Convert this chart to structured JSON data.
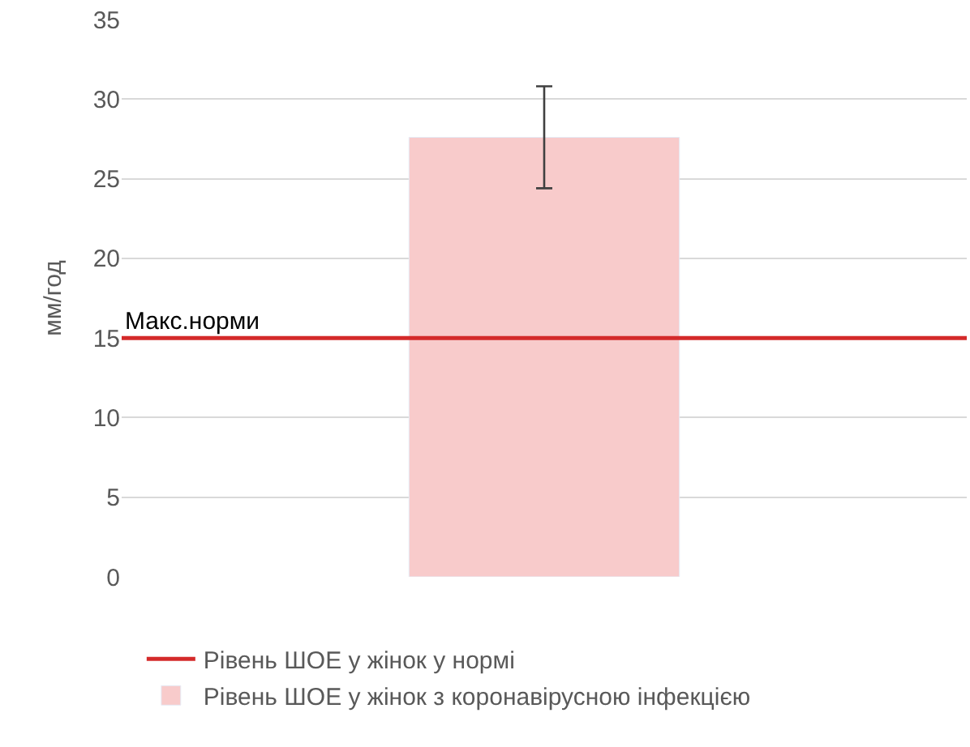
{
  "chart_data": {
    "type": "bar",
    "ylabel": "мм/год",
    "categories": [
      null
    ],
    "series": [
      {
        "name": "Рівень ШОЕ у жінок з коронавірусною інфекцією",
        "color": "#f8cbcb",
        "values": [
          27.6
        ],
        "errors": [
          3.2
        ]
      }
    ],
    "ref_lines": [
      {
        "axis": "y",
        "value": 15,
        "label": "Рівень ШОЕ у жінок у нормі",
        "color": "#d42a2a",
        "line_style": "solid"
      }
    ],
    "annotations": [
      {
        "text": "Макс.норми",
        "y": 15
      }
    ],
    "ylim": [
      0,
      35
    ],
    "yticks": [
      0,
      5,
      10,
      15,
      20,
      25,
      30,
      35
    ],
    "grid": "y",
    "legend": "bottom"
  }
}
